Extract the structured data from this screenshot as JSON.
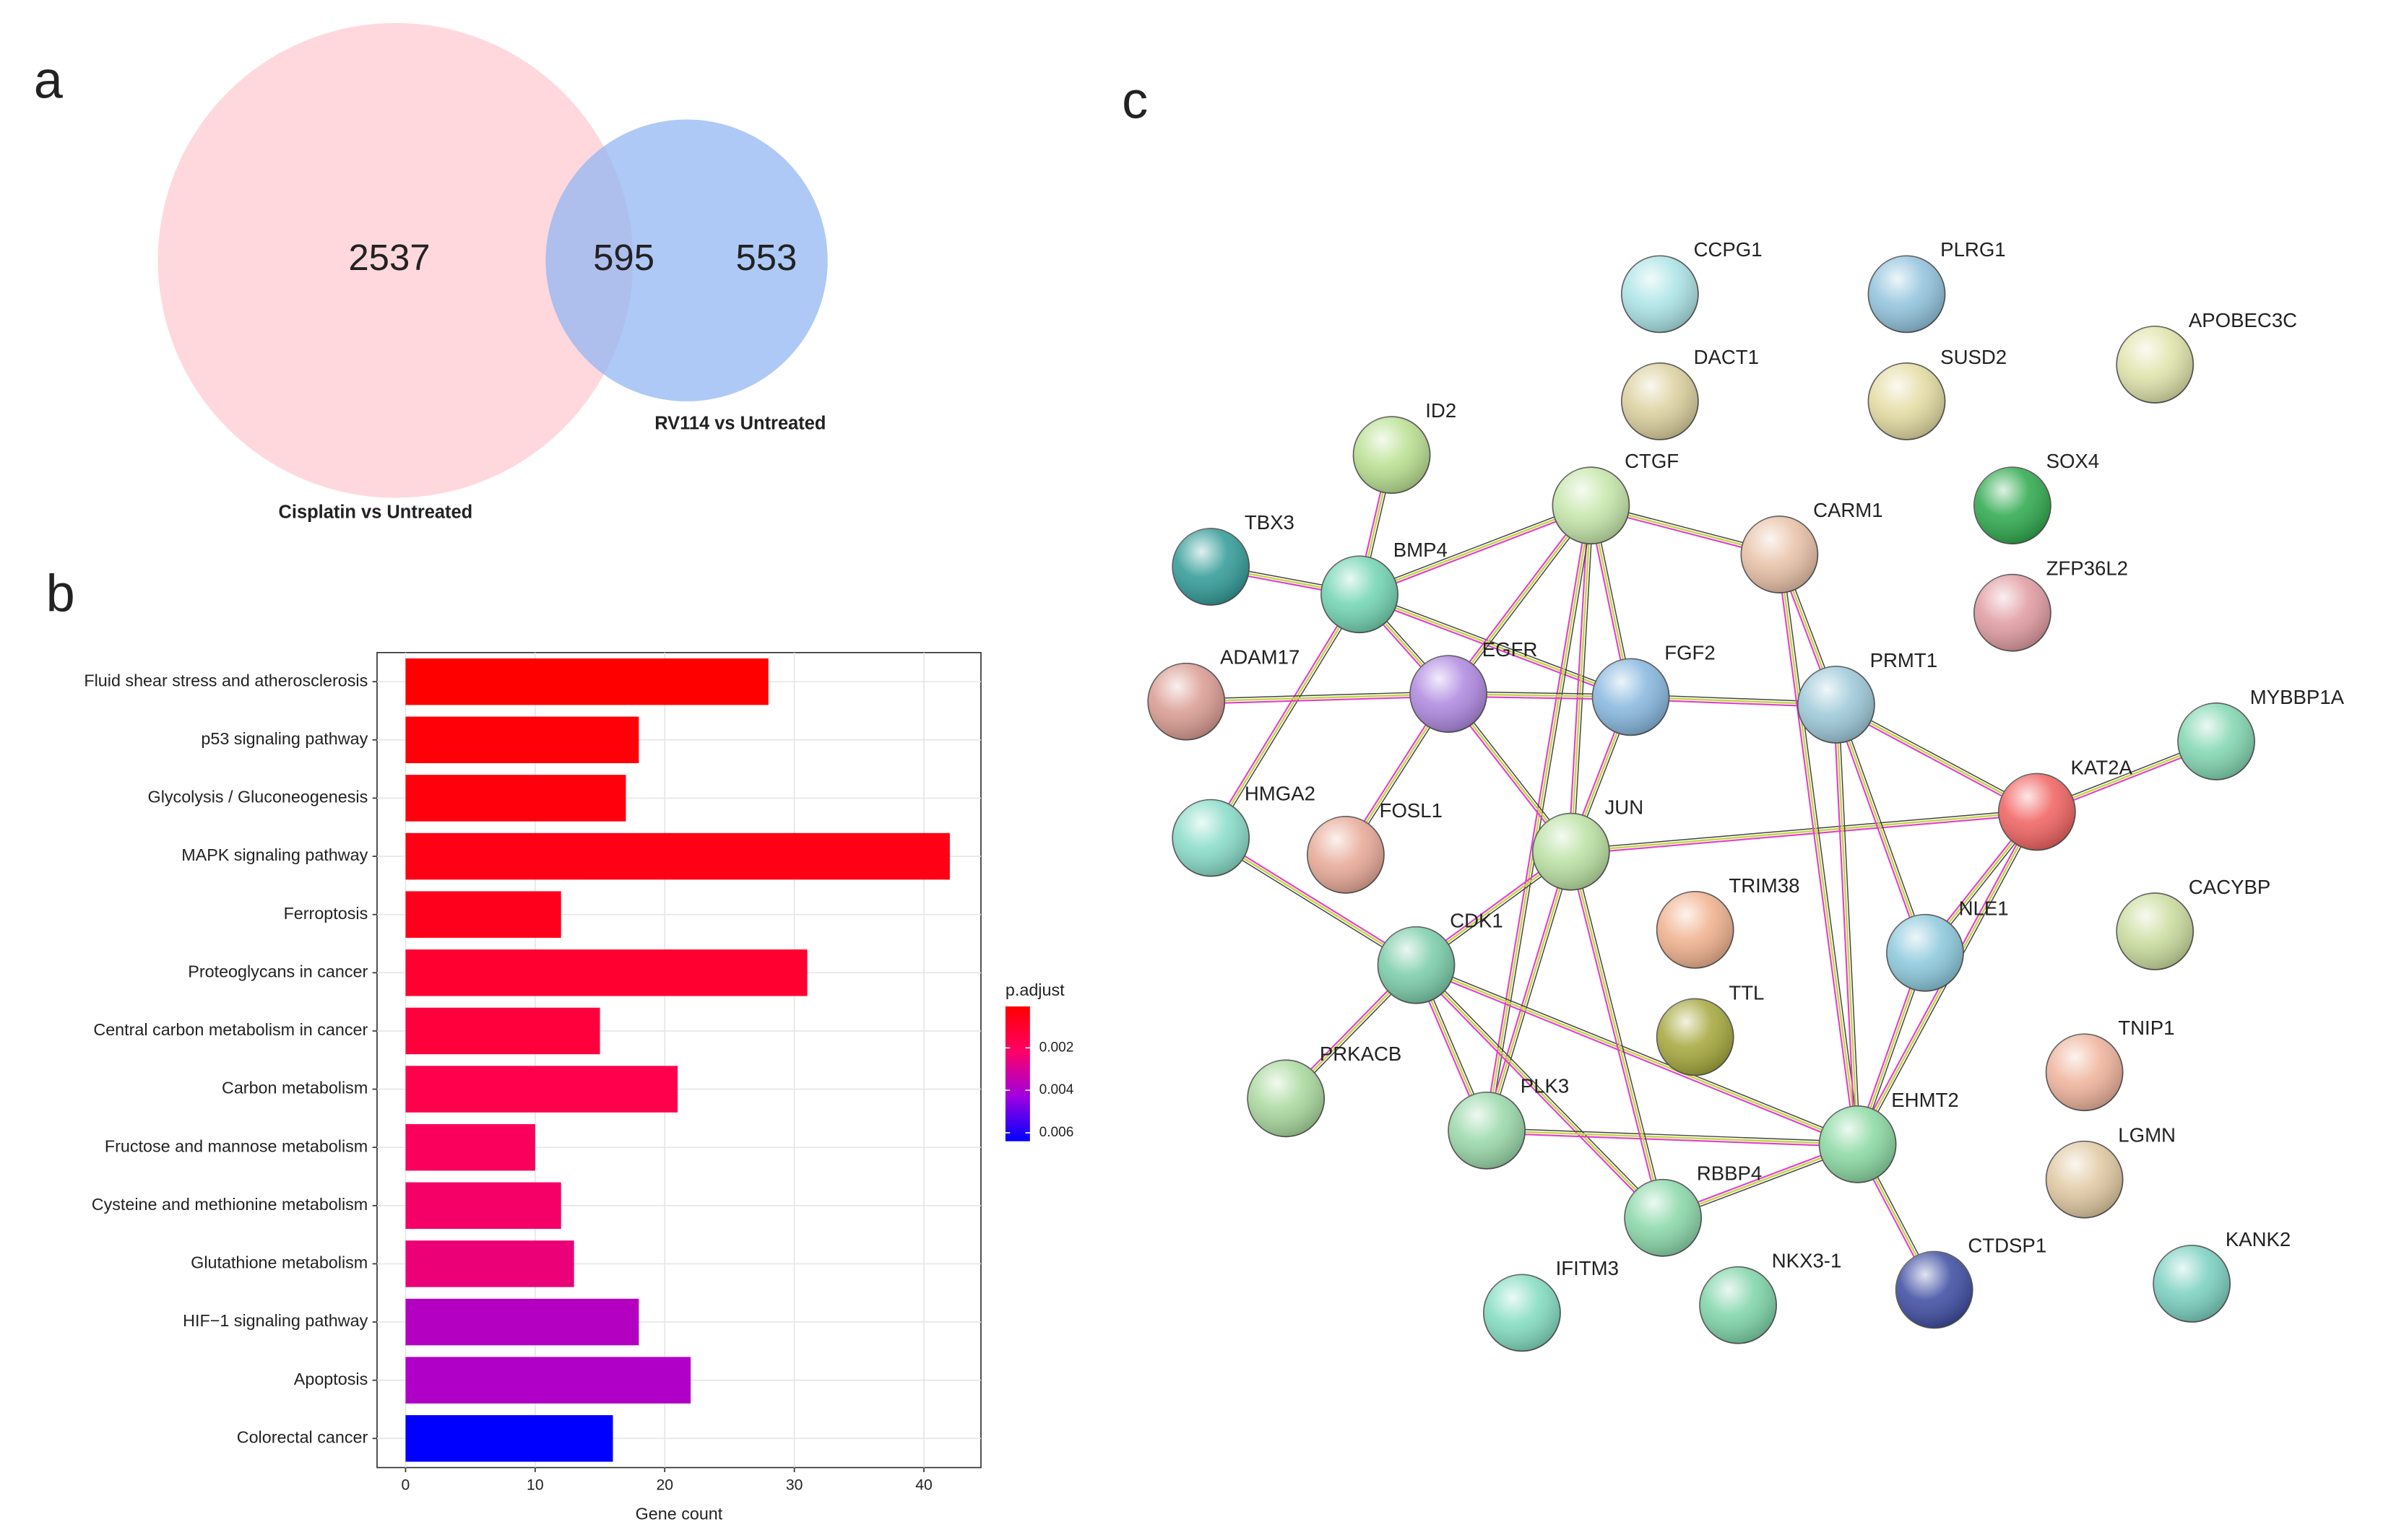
{
  "chart_data": [
    {
      "type": "venn",
      "panel": "a",
      "sets": [
        {
          "name": "Cisplatin vs Untreated",
          "color": "#ffd8dd"
        },
        {
          "name": "RV114 vs Untreated",
          "color": "#8fb4f2"
        }
      ],
      "values": [
        2537,
        595,
        553
      ]
    },
    {
      "type": "bar",
      "panel": "b",
      "orientation": "horizontal",
      "categories": [
        "Fluid shear stress and atherosclerosis",
        "p53 signaling pathway",
        "Glycolysis / Gluconeogenesis",
        "MAPK signaling pathway",
        "Ferroptosis",
        "Proteoglycans in cancer",
        "Central carbon metabolism in cancer",
        "Carbon metabolism",
        "Fructose and mannose metabolism",
        "Cysteine and methionine metabolism",
        "Glutathione metabolism",
        "HIF−1 signaling pathway",
        "Apoptosis",
        "Colorectal cancer"
      ],
      "values": [
        28,
        18,
        17,
        42,
        12,
        31,
        15,
        21,
        10,
        12,
        13,
        18,
        22,
        16
      ],
      "colors": [
        "#ff0000",
        "#ff0008",
        "#ff000c",
        "#ff0014",
        "#ff001c",
        "#ff0030",
        "#ff003c",
        "#ff004c",
        "#fa005c",
        "#f40066",
        "#ec0078",
        "#b400c0",
        "#b000c8",
        "#0000ff"
      ],
      "xlabel": "Gene count",
      "xlim": [
        -2.2,
        44.4
      ],
      "xticks": [
        0,
        10,
        20,
        30,
        40
      ],
      "grid": true,
      "colorbar": {
        "title": "p.adjust",
        "lim": [
          5e-05,
          0.0064
        ],
        "ticks": [
          0.002,
          0.004,
          0.006
        ],
        "colors": [
          "#ff0000",
          "#ff0066",
          "#a000e0",
          "#0000ff"
        ]
      }
    },
    {
      "type": "network",
      "panel": "c",
      "nodes": [
        {
          "label": "CCPG1",
          "color": "#a9e3e6"
        },
        {
          "label": "PLRG1",
          "color": "#8fc2dc"
        },
        {
          "label": "APOBEC3C",
          "color": "#dfe3a8"
        },
        {
          "label": "DACT1",
          "color": "#dbcf9c"
        },
        {
          "label": "SUSD2",
          "color": "#e3dba0"
        },
        {
          "label": "ID2",
          "color": "#b8e08f"
        },
        {
          "label": "SOX4",
          "color": "#2aa84a"
        },
        {
          "label": "CTGF",
          "color": "#c4e6a8"
        },
        {
          "label": "TBX3",
          "color": "#2e9a96"
        },
        {
          "label": "CARM1",
          "color": "#e8c0a6"
        },
        {
          "label": "ZFP36L2",
          "color": "#e09aa0"
        },
        {
          "label": "BMP4",
          "color": "#6fd4b2"
        },
        {
          "label": "ADAM17",
          "color": "#d99a90"
        },
        {
          "label": "EGFR",
          "color": "#ad86e0"
        },
        {
          "label": "FGF2",
          "color": "#85b6de"
        },
        {
          "label": "PRMT1",
          "color": "#9bc8d8"
        },
        {
          "label": "MYBBP1A",
          "color": "#7fd6b0"
        },
        {
          "label": "KAT2A",
          "color": "#f0605e"
        },
        {
          "label": "HMGA2",
          "color": "#86dcc8"
        },
        {
          "label": "FOSL1",
          "color": "#e8a896"
        },
        {
          "label": "JUN",
          "color": "#b8e0a0"
        },
        {
          "label": "CACYBP",
          "color": "#c9dc9c"
        },
        {
          "label": "TRIM38",
          "color": "#f0b08c"
        },
        {
          "label": "NLE1",
          "color": "#8ac8dc"
        },
        {
          "label": "CDK1",
          "color": "#78cca8"
        },
        {
          "label": "TTL",
          "color": "#a4a638"
        },
        {
          "label": "TNIP1",
          "color": "#efb29a"
        },
        {
          "label": "PRKACB",
          "color": "#a8d89c"
        },
        {
          "label": "PLK3",
          "color": "#98d8a8"
        },
        {
          "label": "EHMT2",
          "color": "#88d8a0"
        },
        {
          "label": "LGMN",
          "color": "#e0c8a0"
        },
        {
          "label": "RBBP4",
          "color": "#88d8a8"
        },
        {
          "label": "CTDSP1",
          "color": "#3a4aa0"
        },
        {
          "label": "KANK2",
          "color": "#78d0c0"
        },
        {
          "label": "IFITM3",
          "color": "#80dcc0"
        },
        {
          "label": "NKX3-1",
          "color": "#7cd4a8"
        }
      ]
    }
  ]
}
